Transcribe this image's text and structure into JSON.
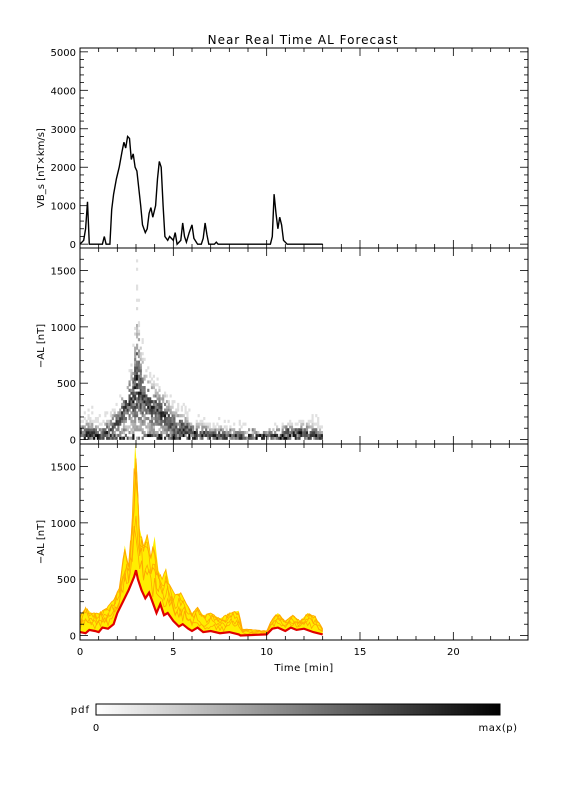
{
  "chart_data": [
    {
      "type": "line",
      "title": "Near Real Time AL Forecast",
      "ylabel": "VB_s [nT×km/s]",
      "xlim": [
        0,
        24
      ],
      "ylim": [
        -100,
        5100
      ],
      "yticks": [
        0,
        1000,
        2000,
        3000,
        4000,
        5000
      ],
      "series": [
        {
          "values": [
            [
              0,
              0
            ],
            [
              0.2,
              100
            ],
            [
              0.3,
              400
            ],
            [
              0.4,
              1100
            ],
            [
              0.5,
              0
            ],
            [
              0.8,
              0
            ],
            [
              1.2,
              0
            ],
            [
              1.3,
              200
            ],
            [
              1.4,
              0
            ],
            [
              1.6,
              0
            ],
            [
              1.7,
              900
            ],
            [
              1.8,
              1300
            ],
            [
              1.95,
              1700
            ],
            [
              2.1,
              2000
            ],
            [
              2.25,
              2400
            ],
            [
              2.35,
              2650
            ],
            [
              2.45,
              2500
            ],
            [
              2.55,
              2800
            ],
            [
              2.65,
              2750
            ],
            [
              2.75,
              2200
            ],
            [
              2.85,
              2350
            ],
            [
              2.95,
              2000
            ],
            [
              3.05,
              1900
            ],
            [
              3.15,
              1450
            ],
            [
              3.25,
              1000
            ],
            [
              3.35,
              500
            ],
            [
              3.5,
              300
            ],
            [
              3.6,
              400
            ],
            [
              3.7,
              800
            ],
            [
              3.8,
              950
            ],
            [
              3.9,
              700
            ],
            [
              4.05,
              1000
            ],
            [
              4.15,
              1700
            ],
            [
              4.25,
              2150
            ],
            [
              4.35,
              2000
            ],
            [
              4.45,
              1000
            ],
            [
              4.55,
              200
            ],
            [
              4.7,
              100
            ],
            [
              4.8,
              200
            ],
            [
              5.0,
              100
            ],
            [
              5.1,
              300
            ],
            [
              5.2,
              0
            ],
            [
              5.4,
              100
            ],
            [
              5.5,
              550
            ],
            [
              5.6,
              200
            ],
            [
              5.7,
              50
            ],
            [
              5.85,
              300
            ],
            [
              6.0,
              500
            ],
            [
              6.1,
              150
            ],
            [
              6.3,
              0
            ],
            [
              6.5,
              0
            ],
            [
              6.6,
              150
            ],
            [
              6.7,
              550
            ],
            [
              6.8,
              250
            ],
            [
              6.9,
              0
            ],
            [
              7.2,
              0
            ],
            [
              7.3,
              50
            ],
            [
              7.4,
              0
            ],
            [
              8.5,
              0
            ],
            [
              10.2,
              0
            ],
            [
              10.3,
              200
            ],
            [
              10.4,
              1300
            ],
            [
              10.5,
              800
            ],
            [
              10.6,
              400
            ],
            [
              10.7,
              700
            ],
            [
              10.8,
              500
            ],
            [
              10.9,
              100
            ],
            [
              11.1,
              0
            ],
            [
              13.0,
              0
            ]
          ]
        }
      ]
    },
    {
      "type": "heatmap",
      "ylabel": "−AL [nT]",
      "xlim": [
        0,
        24
      ],
      "ylim": [
        -40,
        1700
      ],
      "yticks": [
        0,
        500,
        1000,
        1500
      ],
      "envelope": [
        [
          0,
          280
        ],
        [
          0.5,
          300
        ],
        [
          1.0,
          200
        ],
        [
          1.5,
          280
        ],
        [
          2.0,
          350
        ],
        [
          2.5,
          500
        ],
        [
          2.8,
          900
        ],
        [
          3.0,
          1600
        ],
        [
          3.2,
          1000
        ],
        [
          3.5,
          650
        ],
        [
          4.0,
          550
        ],
        [
          4.5,
          450
        ],
        [
          5.0,
          400
        ],
        [
          5.5,
          350
        ],
        [
          6.0,
          200
        ],
        [
          6.5,
          250
        ],
        [
          7.0,
          150
        ],
        [
          7.5,
          200
        ],
        [
          8.0,
          150
        ],
        [
          8.5,
          200
        ],
        [
          9.0,
          100
        ],
        [
          10.0,
          100
        ],
        [
          10.5,
          150
        ],
        [
          11.0,
          200
        ],
        [
          11.5,
          150
        ],
        [
          12.0,
          250
        ],
        [
          12.5,
          250
        ],
        [
          13.0,
          120
        ]
      ],
      "center": [
        [
          0,
          20
        ],
        [
          0.5,
          40
        ],
        [
          1.0,
          30
        ],
        [
          1.5,
          60
        ],
        [
          2.0,
          150
        ],
        [
          2.5,
          300
        ],
        [
          2.8,
          350
        ],
        [
          3.0,
          500
        ],
        [
          3.2,
          400
        ],
        [
          3.5,
          300
        ],
        [
          4.0,
          250
        ],
        [
          4.5,
          200
        ],
        [
          5.0,
          100
        ],
        [
          5.5,
          80
        ],
        [
          6.0,
          50
        ],
        [
          7.0,
          30
        ],
        [
          8.0,
          20
        ],
        [
          9.0,
          10
        ],
        [
          10.0,
          20
        ],
        [
          10.5,
          40
        ],
        [
          11.0,
          50
        ],
        [
          11.5,
          60
        ],
        [
          12.0,
          40
        ],
        [
          12.5,
          30
        ],
        [
          13.0,
          10
        ]
      ],
      "colorbar": {
        "label": "pdf",
        "min_label": "0",
        "max_label": "max(p)"
      }
    },
    {
      "type": "line",
      "ylabel": "−AL [nT]",
      "xlabel": "Time [min]",
      "xlim": [
        0,
        24
      ],
      "ylim": [
        -40,
        1700
      ],
      "xticks": [
        0,
        5,
        10,
        15,
        20
      ],
      "yticks": [
        0,
        500,
        1000,
        1500
      ],
      "colors": {
        "median": "#e00000",
        "upper": "#ffee00",
        "spread": "#ffa800"
      },
      "series": [
        {
          "values": [
            [
              0,
              30
            ],
            [
              0.3,
              20
            ],
            [
              0.5,
              50
            ],
            [
              0.8,
              40
            ],
            [
              1.0,
              30
            ],
            [
              1.2,
              70
            ],
            [
              1.5,
              60
            ],
            [
              1.8,
              100
            ],
            [
              2.0,
              200
            ],
            [
              2.3,
              300
            ],
            [
              2.6,
              400
            ],
            [
              2.9,
              520
            ],
            [
              3.0,
              580
            ],
            [
              3.1,
              500
            ],
            [
              3.3,
              400
            ],
            [
              3.5,
              330
            ],
            [
              3.7,
              380
            ],
            [
              3.9,
              290
            ],
            [
              4.1,
              200
            ],
            [
              4.3,
              280
            ],
            [
              4.5,
              180
            ],
            [
              4.7,
              200
            ],
            [
              5.0,
              130
            ],
            [
              5.3,
              80
            ],
            [
              5.5,
              100
            ],
            [
              5.8,
              60
            ],
            [
              6.0,
              40
            ],
            [
              6.3,
              70
            ],
            [
              6.6,
              30
            ],
            [
              7.0,
              40
            ],
            [
              7.5,
              20
            ],
            [
              8.0,
              30
            ],
            [
              8.5,
              10
            ],
            [
              8.6,
              0
            ],
            [
              10.0,
              10
            ],
            [
              10.3,
              60
            ],
            [
              10.6,
              70
            ],
            [
              11.0,
              40
            ],
            [
              11.3,
              70
            ],
            [
              11.6,
              50
            ],
            [
              12.0,
              60
            ],
            [
              12.5,
              30
            ],
            [
              13.0,
              10
            ]
          ]
        },
        {
          "values": [
            [
              0,
              170
            ],
            [
              0.3,
              250
            ],
            [
              0.6,
              200
            ],
            [
              1.0,
              200
            ],
            [
              1.4,
              240
            ],
            [
              1.8,
              320
            ],
            [
              2.1,
              420
            ],
            [
              2.4,
              800
            ],
            [
              2.6,
              620
            ],
            [
              2.8,
              1050
            ],
            [
              2.95,
              1700
            ],
            [
              3.05,
              1500
            ],
            [
              3.2,
              950
            ],
            [
              3.4,
              800
            ],
            [
              3.6,
              900
            ],
            [
              3.8,
              700
            ],
            [
              4.0,
              880
            ],
            [
              4.2,
              580
            ],
            [
              4.4,
              500
            ],
            [
              4.6,
              600
            ],
            [
              4.8,
              450
            ],
            [
              5.1,
              360
            ],
            [
              5.4,
              380
            ],
            [
              5.7,
              280
            ],
            [
              6.0,
              200
            ],
            [
              6.3,
              250
            ],
            [
              6.6,
              180
            ],
            [
              7.0,
              200
            ],
            [
              7.5,
              150
            ],
            [
              8.0,
              200
            ],
            [
              8.5,
              220
            ],
            [
              8.7,
              60
            ],
            [
              10.0,
              40
            ],
            [
              10.3,
              150
            ],
            [
              10.6,
              200
            ],
            [
              11.0,
              130
            ],
            [
              11.4,
              180
            ],
            [
              11.8,
              130
            ],
            [
              12.2,
              200
            ],
            [
              12.6,
              170
            ],
            [
              13.0,
              60
            ]
          ]
        }
      ]
    }
  ]
}
